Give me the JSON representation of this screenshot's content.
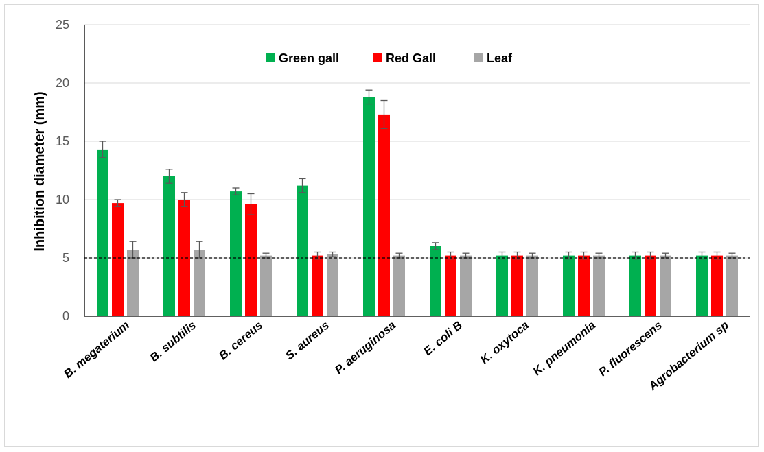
{
  "chart_data": {
    "type": "bar",
    "title": "",
    "xlabel": "",
    "ylabel": "Inhibition diameter (mm)",
    "ylim": [
      0,
      25
    ],
    "yticks": [
      0,
      5,
      10,
      15,
      20,
      25
    ],
    "grid": true,
    "legend_position": "top-center",
    "reference_line": {
      "y": 5,
      "style": "dashed"
    },
    "categories": [
      "B. megaterium",
      "B. subtilis",
      "B. cereus",
      "S. aureus",
      "P. aeruginosa",
      "E. coli B",
      "K. oxytoca",
      "K. pneumonia",
      "P. fluorescens",
      "Agrobacterium sp"
    ],
    "series": [
      {
        "name": "Green gall",
        "color": "#00b050",
        "values": [
          14.3,
          12.0,
          10.7,
          11.2,
          18.8,
          6.0,
          5.2,
          5.2,
          5.2,
          5.2
        ],
        "errors": [
          0.7,
          0.6,
          0.3,
          0.6,
          0.6,
          0.3,
          0.3,
          0.3,
          0.3,
          0.3
        ]
      },
      {
        "name": "Red Gall",
        "color": "#ff0000",
        "values": [
          9.7,
          10.0,
          9.6,
          5.2,
          17.3,
          5.2,
          5.2,
          5.2,
          5.2,
          5.2
        ],
        "errors": [
          0.3,
          0.6,
          0.9,
          0.3,
          1.2,
          0.3,
          0.3,
          0.3,
          0.3,
          0.3
        ]
      },
      {
        "name": "Leaf",
        "color": "#a6a6a6",
        "values": [
          5.7,
          5.7,
          5.2,
          5.3,
          5.2,
          5.2,
          5.2,
          5.2,
          5.2,
          5.2
        ],
        "errors": [
          0.7,
          0.7,
          0.2,
          0.2,
          0.2,
          0.2,
          0.2,
          0.2,
          0.2,
          0.2
        ]
      }
    ]
  }
}
